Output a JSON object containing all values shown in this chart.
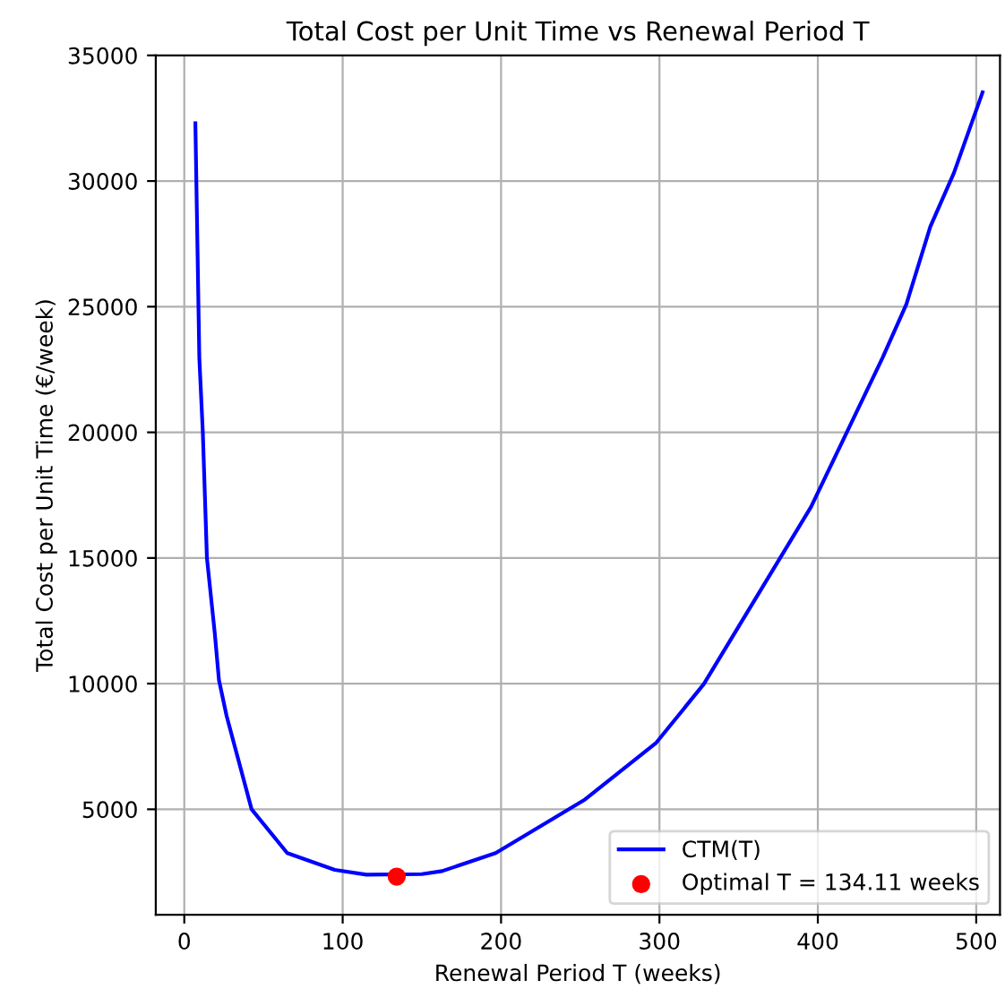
{
  "chart_data": {
    "type": "line",
    "title": "Total Cost per Unit Time vs Renewal Period T",
    "xlabel": "Renewal Period T (weeks)",
    "ylabel": "Total Cost per Unit Time (€/week)",
    "series": [
      {
        "name": "CTM(T)",
        "color": "#0000ff",
        "x": [
          7,
          9.5,
          11.7,
          14.3,
          19.2,
          21.9,
          26.7,
          42.5,
          65,
          95,
          115,
          150,
          162.8,
          196.6,
          253,
          298,
          328,
          395.7,
          440.8,
          455.9,
          471,
          485.9,
          504
        ],
        "values": [
          32300,
          22960,
          20000,
          15000,
          12040,
          10140,
          8720,
          5000,
          3260,
          2590,
          2400,
          2420,
          2540,
          3260,
          5390,
          7650,
          9980,
          17030,
          22960,
          25100,
          28180,
          30320,
          33530
        ]
      },
      {
        "name": "Optimal T = 134.11 weeks",
        "type": "scatter",
        "color": "#ff0000",
        "marker": "circle",
        "x": [
          134.11
        ],
        "values": [
          2320
        ]
      }
    ],
    "xlim": [
      -18,
      515
    ],
    "ylim": [
      800,
      35000
    ],
    "xticks": [
      0,
      100,
      200,
      300,
      400,
      500
    ],
    "yticks": [
      5000,
      10000,
      15000,
      20000,
      25000,
      30000,
      35000
    ],
    "grid": true,
    "legend": "bottom right"
  }
}
